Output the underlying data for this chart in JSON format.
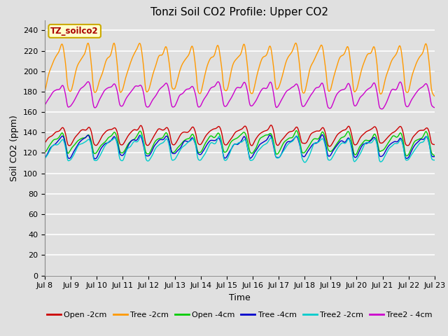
{
  "title": "Tonzi Soil CO2 Profile: Upper CO2",
  "ylabel": "Soil CO2 (ppm)",
  "xlabel": "Time",
  "dataset_label": "TZ_soilco2",
  "ylim": [
    0,
    250
  ],
  "yticks": [
    0,
    20,
    40,
    60,
    80,
    100,
    120,
    140,
    160,
    180,
    200,
    220,
    240
  ],
  "xtick_labels": [
    "Jul 8",
    "Jul 9",
    "Jul 10",
    "Jul 11",
    "Jul 12",
    "Jul 13",
    "Jul 14",
    "Jul 15",
    "Jul 16",
    "Jul 17",
    "Jul 18",
    "Jul 19",
    "Jul 20",
    "Jul 21",
    "Jul 22",
    "Jul 23"
  ],
  "fig_facecolor": "#e0e0e0",
  "ax_facecolor": "#e0e0e0",
  "grid_color": "#ffffff",
  "series": [
    {
      "label": "Open -2cm",
      "color": "#cc0000"
    },
    {
      "label": "Tree -2cm",
      "color": "#ff9900"
    },
    {
      "label": "Open -4cm",
      "color": "#00cc00"
    },
    {
      "label": "Tree -4cm",
      "color": "#0000cc"
    },
    {
      "label": "Tree2 -2cm",
      "color": "#00cccc"
    },
    {
      "label": "Tree2 - 4cm",
      "color": "#cc00cc"
    }
  ],
  "n_points": 720,
  "duration_days": 15,
  "title_fontsize": 11,
  "label_fontsize": 9,
  "tick_fontsize": 8,
  "legend_fontsize": 8
}
